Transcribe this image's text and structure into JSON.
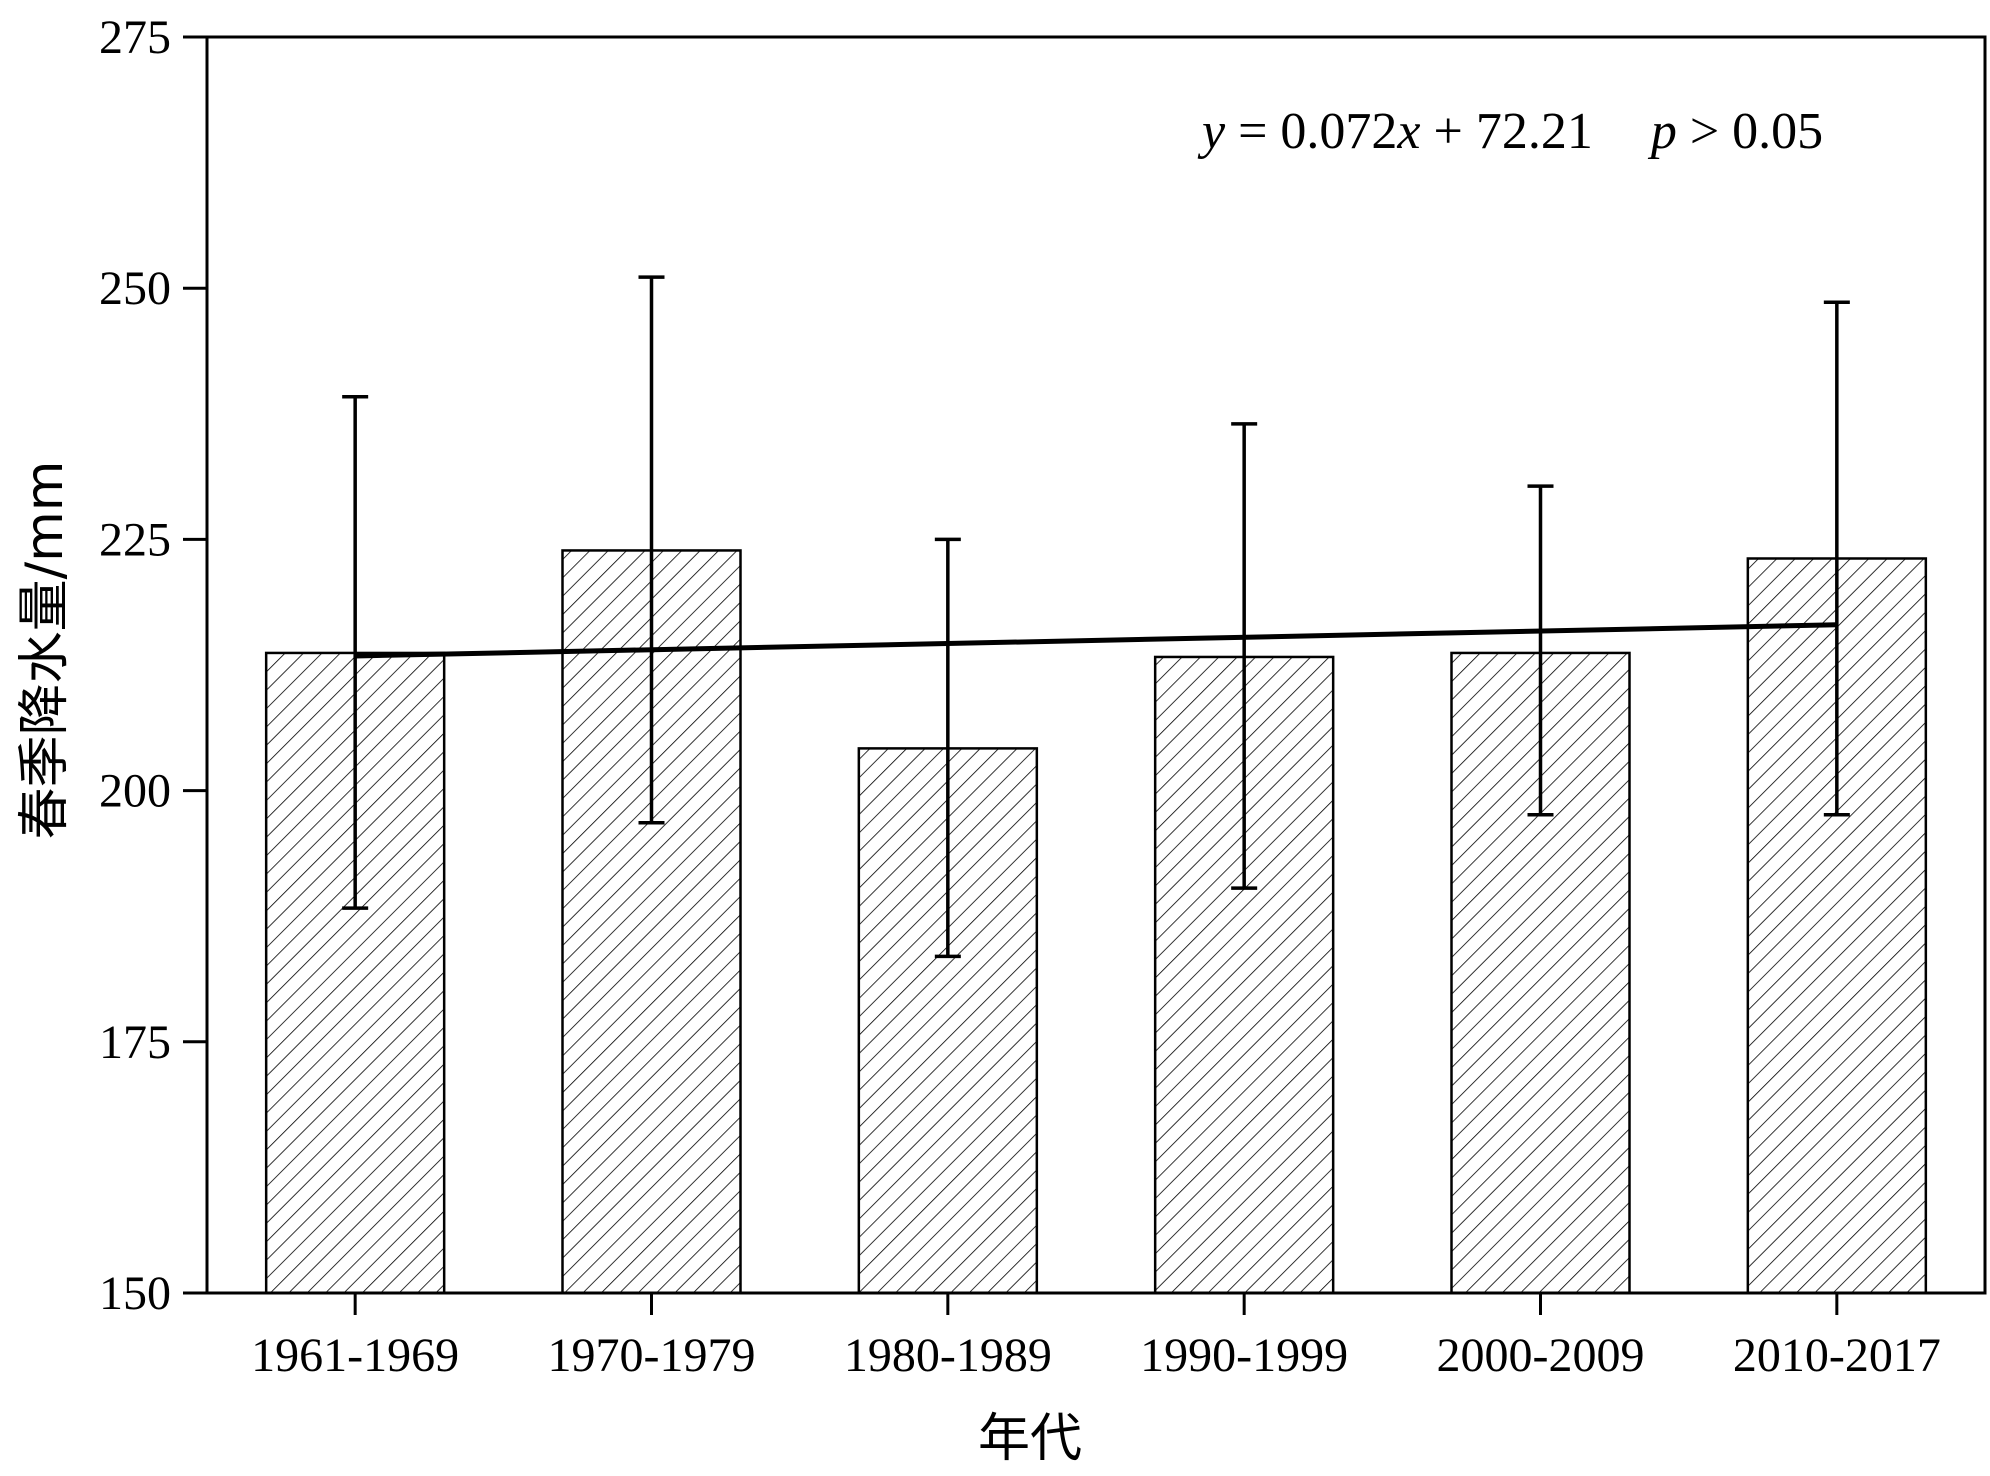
{
  "chart_data": {
    "type": "bar",
    "title": "",
    "xlabel": "年代",
    "ylabel": "春季降水量/mm",
    "categories": [
      "1961-1969",
      "1970-1979",
      "1980-1989",
      "1990-1999",
      "2000-2009",
      "2010-2017"
    ],
    "values": [
      213.7,
      223.9,
      204.2,
      213.3,
      213.7,
      223.1
    ],
    "error_low": [
      188.3,
      196.8,
      183.5,
      190.3,
      197.6,
      197.6
    ],
    "error_high": [
      239.2,
      251.1,
      225.0,
      236.5,
      230.3,
      248.6
    ],
    "trend_line": {
      "start": 213.4,
      "end": 216.5
    },
    "ylim": [
      150,
      275
    ],
    "yticks": [
      150,
      175,
      200,
      225,
      250,
      275
    ],
    "annotation": {
      "y_var": "y",
      "eq_mid": " = 0.072",
      "x_var": "x",
      "eq_end": " + 72.21",
      "p_var": "p",
      "p_rest": " > 0.05"
    },
    "bar_pattern": "diagonal-hatch",
    "colors": {
      "line": "#000000",
      "bar_fill": "#ffffff",
      "hatch": "#000000"
    },
    "grid": false,
    "legend": "none"
  }
}
